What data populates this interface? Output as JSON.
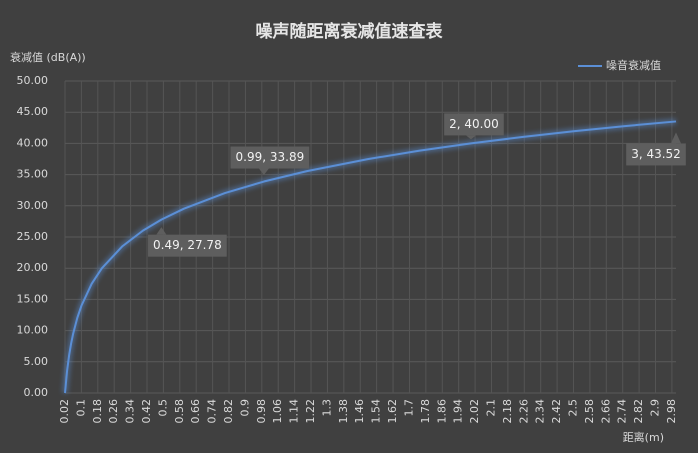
{
  "chart_data": {
    "type": "line",
    "title": "噪声随距离衰减值速查表",
    "y_label": "衰减值 (dB(A))",
    "x_label": "距离(m)",
    "legend": "top-right",
    "grid": true,
    "x": [
      0.02,
      0.03,
      0.04,
      0.05,
      0.06,
      0.08,
      0.1,
      0.15,
      0.2,
      0.3,
      0.4,
      0.49,
      0.6,
      0.8,
      0.99,
      1.2,
      1.5,
      1.75,
      2,
      2.25,
      2.5,
      2.75,
      3
    ],
    "series": [
      {
        "name": "噪音衰减值",
        "color": "#5b8fd6",
        "values": [
          0,
          3.52,
          6.02,
          7.96,
          9.54,
          12.04,
          13.98,
          17.5,
          20.0,
          23.52,
          26.02,
          27.78,
          29.54,
          32.04,
          33.89,
          35.56,
          37.5,
          38.84,
          40.0,
          41.02,
          41.94,
          42.77,
          43.52
        ],
        "value_labels": [
          null,
          null,
          null,
          null,
          null,
          null,
          null,
          null,
          null,
          null,
          null,
          "0.49, 27.78",
          null,
          null,
          "0.99, 33.89",
          null,
          null,
          null,
          "2, 40.00",
          null,
          null,
          null,
          "3, 43.52"
        ]
      }
    ],
    "xlim": [
      0.02,
      3
    ],
    "xticks": [
      0.02,
      0.1,
      0.18,
      0.26,
      0.34,
      0.42,
      0.5,
      0.58,
      0.66,
      0.74,
      0.82,
      0.9,
      0.98,
      1.06,
      1.14,
      1.22,
      1.3,
      1.38,
      1.46,
      1.54,
      1.62,
      1.7,
      1.78,
      1.86,
      1.94,
      2.02,
      2.1,
      2.18,
      2.26,
      2.34,
      2.42,
      2.5,
      2.58,
      2.66,
      2.74,
      2.82,
      2.9,
      2.98
    ],
    "ylim": [
      0,
      50
    ],
    "yticks": [
      {
        "value": 0,
        "label": "0.00"
      },
      {
        "value": 5,
        "label": "5.00"
      },
      {
        "value": 10,
        "label": "10.00"
      },
      {
        "value": 15,
        "label": "15.00"
      },
      {
        "value": 20,
        "label": "20.00"
      },
      {
        "value": 25,
        "label": "25.00"
      },
      {
        "value": 30,
        "label": "30.00"
      },
      {
        "value": 35,
        "label": "35.00"
      },
      {
        "value": 40,
        "label": "40.00"
      },
      {
        "value": 45,
        "label": "45.00"
      },
      {
        "value": 50,
        "label": "50.00"
      }
    ]
  }
}
